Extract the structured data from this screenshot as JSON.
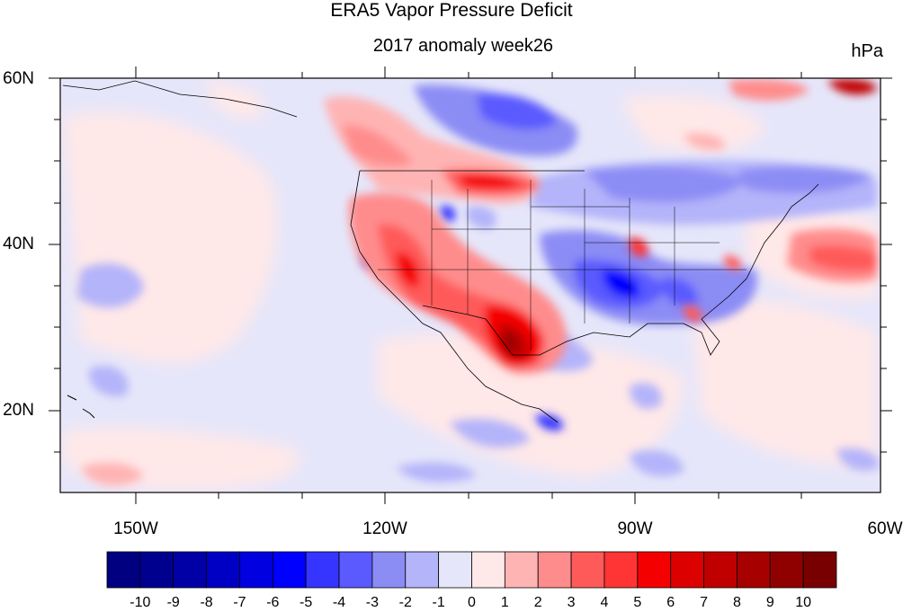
{
  "title": "ERA5 Vapor Pressure Deficit",
  "subtitle": "2017 anomaly week26",
  "units": "hPa",
  "map": {
    "projection": "cylindrical equidistant",
    "lon_range": [
      -160,
      -60
    ],
    "lat_range": [
      10,
      60
    ],
    "lat_labels": [
      "60N",
      "40N",
      "20N"
    ],
    "lon_labels": [
      "150W",
      "120W",
      "90W",
      "60W"
    ],
    "lat_tick_values": [
      60,
      40,
      20
    ],
    "lon_tick_values": [
      -150,
      -120,
      -90,
      -60
    ],
    "features": [
      "coastlines",
      "US state boundaries",
      "national borders"
    ],
    "anomaly_regions": [
      {
        "region": "Southwest US / Texas / northern Mexico",
        "sign": "positive",
        "peak_hPa": 9
      },
      {
        "region": "Northern Rockies / Montana / Dakotas",
        "sign": "positive",
        "peak_hPa": 6
      },
      {
        "region": "Southern Canada (BC/Alberta)",
        "sign": "positive",
        "peak_hPa": 4
      },
      {
        "region": "Southeastern US / Tennessee Valley",
        "sign": "negative",
        "peak_hPa": -5
      },
      {
        "region": "Great Lakes / southern Ontario",
        "sign": "negative",
        "peak_hPa": -3
      },
      {
        "region": "Central Canada",
        "sign": "negative",
        "peak_hPa": -3
      },
      {
        "region": "Western Atlantic off NE US",
        "sign": "positive",
        "peak_hPa": 3
      },
      {
        "region": "Northeast Pacific",
        "sign": "near zero",
        "peak_hPa": 1
      }
    ]
  },
  "colorbar": {
    "labels": [
      "-10",
      "-9",
      "-8",
      "-7",
      "-6",
      "-5",
      "-4",
      "-3",
      "-2",
      "-1",
      "0",
      "1",
      "2",
      "3",
      "4",
      "5",
      "6",
      "7",
      "8",
      "9",
      "10"
    ],
    "colors": [
      "#000080",
      "#00008f",
      "#0000a6",
      "#0000c4",
      "#0000e0",
      "#0000ff",
      "#3535ff",
      "#5a5aff",
      "#8c8cf5",
      "#b4b4fa",
      "#e6e6fa",
      "#ffe8e8",
      "#ffb4b4",
      "#ff8c8c",
      "#ff5a5a",
      "#ff3535",
      "#f50000",
      "#dc0000",
      "#c00000",
      "#a60000",
      "#8f0000",
      "#780000"
    ]
  }
}
